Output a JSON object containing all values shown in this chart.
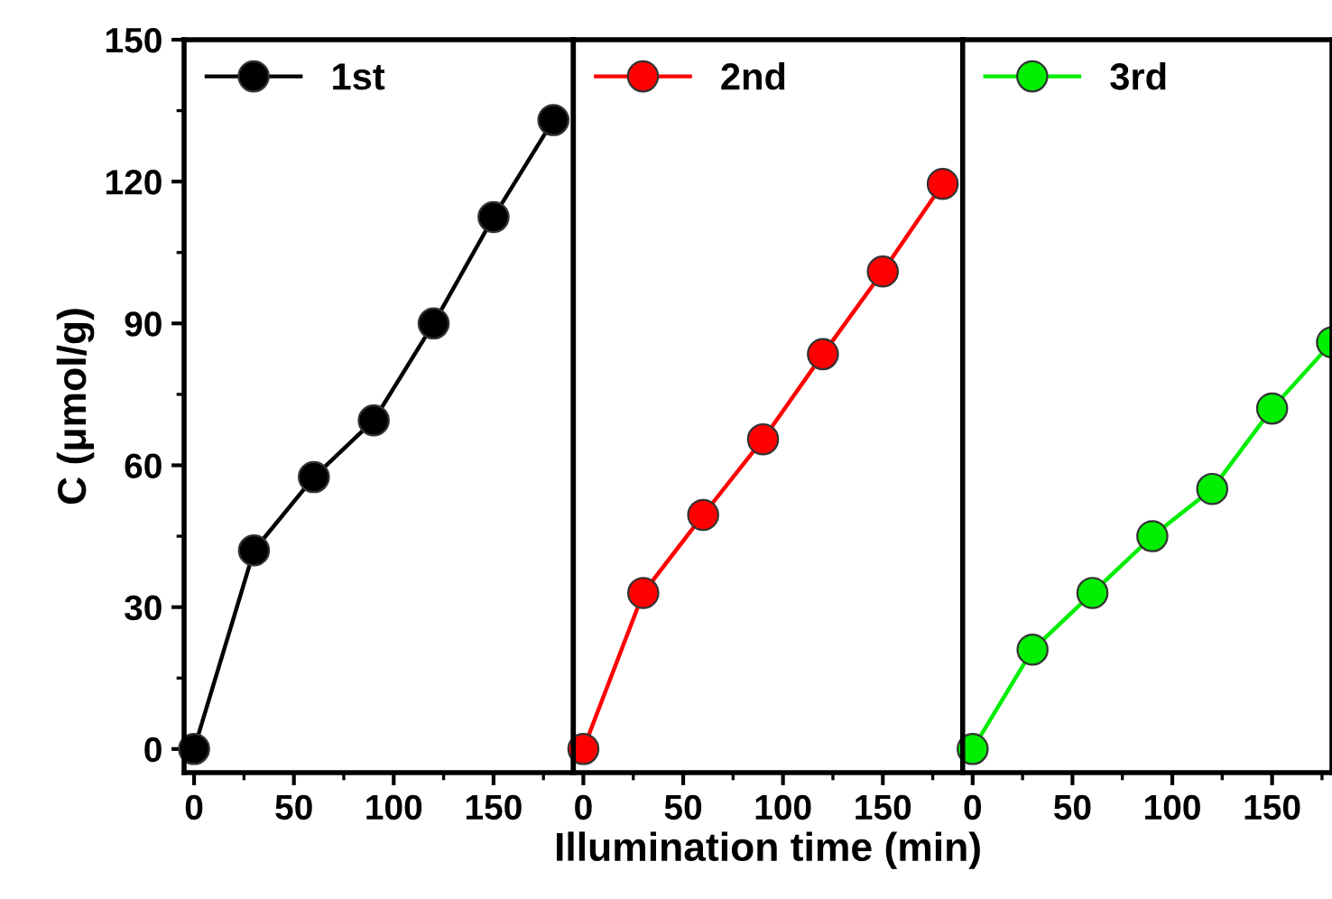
{
  "chart_data": [
    {
      "type": "line",
      "ylabel": "C (μmol/g)",
      "x": [
        0,
        30,
        60,
        90,
        120,
        150,
        180
      ],
      "xlim": [
        -5,
        190
      ],
      "xticks": [
        0,
        50,
        100,
        150
      ],
      "ylim": [
        -5,
        150
      ],
      "yticks": [
        0,
        30,
        60,
        90,
        120,
        150
      ],
      "marker": "circle",
      "legend": "top left",
      "grid": false,
      "series": [
        {
          "name": "1st",
          "color": "#000000",
          "values": [
            0,
            42,
            57.5,
            69.5,
            90,
            112.5,
            133
          ]
        }
      ]
    },
    {
      "type": "line",
      "xlabel": "Illumination time (min)",
      "x": [
        0,
        30,
        60,
        90,
        120,
        150,
        180
      ],
      "xlim": [
        -5,
        190
      ],
      "xticks": [
        0,
        50,
        100,
        150
      ],
      "ylim": [
        -5,
        150
      ],
      "yticks": [
        0,
        30,
        60,
        90,
        120,
        150
      ],
      "tick_labels": "x",
      "marker": "circle",
      "legend": "top left",
      "grid": false,
      "series": [
        {
          "name": "2nd",
          "color": "#ff0000",
          "values": [
            0,
            33,
            49.5,
            65.5,
            83.5,
            101,
            119.5
          ]
        }
      ]
    },
    {
      "type": "line",
      "x": [
        0,
        30,
        60,
        90,
        120,
        150,
        180
      ],
      "xlim": [
        -5,
        180
      ],
      "xticks": [
        0,
        50,
        100,
        150
      ],
      "ylim": [
        -5,
        150
      ],
      "yticks": [
        0,
        30,
        60,
        90,
        120,
        150
      ],
      "tick_labels": "x",
      "marker": "circle",
      "legend": "top left",
      "grid": false,
      "series": [
        {
          "name": "3rd",
          "color": "#00ee00",
          "values": [
            0,
            21,
            33,
            45,
            55,
            72,
            86
          ]
        }
      ]
    }
  ]
}
